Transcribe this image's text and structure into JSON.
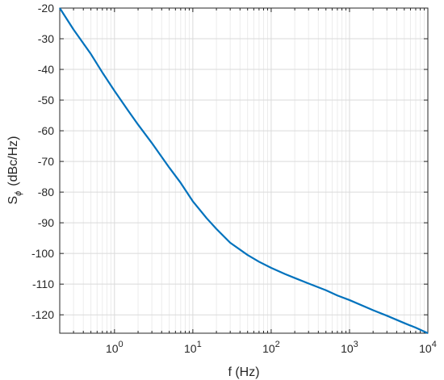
{
  "chart_data": {
    "type": "line",
    "title": "",
    "xlabel": "f (Hz)",
    "ylabel_main": "S",
    "ylabel_sub": "ϕ",
    "ylabel_unit": "(dBc/Hz)",
    "x_scale": "log",
    "xlim": [
      0.2,
      10000
    ],
    "ylim": [
      -126,
      -20
    ],
    "grid": true,
    "x_ticks": [
      {
        "value": 1,
        "base": "10",
        "exp": "0"
      },
      {
        "value": 10,
        "base": "10",
        "exp": "1"
      },
      {
        "value": 100,
        "base": "10",
        "exp": "2"
      },
      {
        "value": 1000,
        "base": "10",
        "exp": "3"
      },
      {
        "value": 10000,
        "base": "10",
        "exp": "4"
      }
    ],
    "y_ticks": [
      -20,
      -30,
      -40,
      -50,
      -60,
      -70,
      -80,
      -90,
      -100,
      -110,
      -120
    ],
    "series": [
      {
        "color": "#0072BD",
        "x": [
          0.2,
          0.3,
          0.5,
          0.7,
          1,
          1.5,
          2,
          3,
          5,
          7,
          10,
          15,
          20,
          30,
          50,
          70,
          100,
          150,
          200,
          300,
          500,
          700,
          1000,
          2000,
          3000,
          5000,
          7000,
          10000
        ],
        "y": [
          -20,
          -27,
          -35,
          -41,
          -47,
          -53.5,
          -58,
          -64,
          -72,
          -77,
          -83,
          -88.5,
          -92,
          -96.5,
          -100.5,
          -102.7,
          -104.7,
          -106.7,
          -108,
          -109.8,
          -112,
          -113.7,
          -115.2,
          -118.5,
          -120.3,
          -122.7,
          -124.2,
          -126
        ]
      }
    ]
  }
}
